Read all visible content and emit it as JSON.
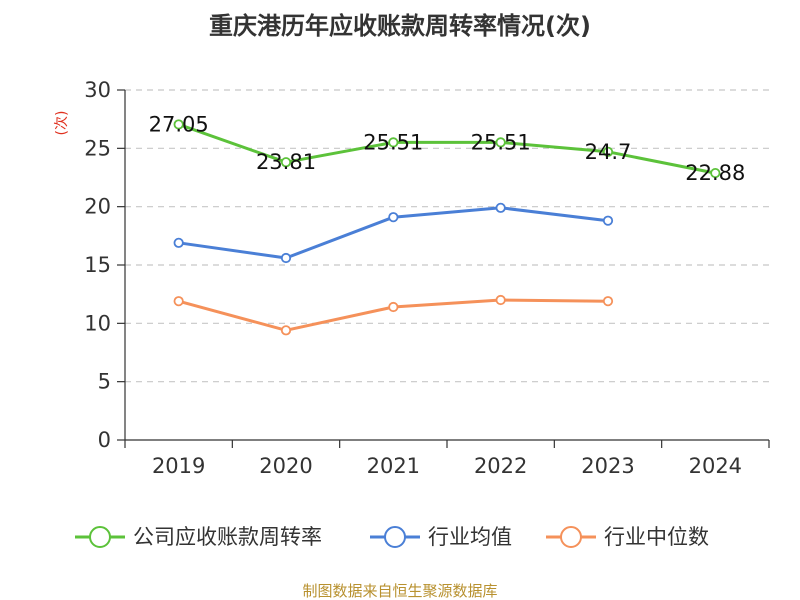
{
  "chart_data": {
    "type": "line",
    "title": "重庆港历年应收账款周转率情况(次)",
    "ylabel": "(次)",
    "xlabel": "",
    "categories": [
      "2019",
      "2020",
      "2021",
      "2022",
      "2023",
      "2024"
    ],
    "ylim": [
      0,
      30
    ],
    "yticks": [
      0,
      5,
      10,
      15,
      20,
      25,
      30
    ],
    "grid": true,
    "legend_position": "bottom",
    "series": [
      {
        "name": "公司应收账款周转率",
        "color": "#5cc23a",
        "values": [
          27.05,
          23.81,
          25.51,
          25.51,
          24.7,
          22.88
        ],
        "labels": [
          "27.05",
          "23.81",
          "25.51",
          "25.51",
          "24.7",
          "22.88"
        ]
      },
      {
        "name": "行业均值",
        "color": "#4a7fd6",
        "values": [
          16.9,
          15.6,
          19.1,
          19.9,
          18.8,
          null
        ]
      },
      {
        "name": "行业中位数",
        "color": "#f5915a",
        "values": [
          11.9,
          9.4,
          11.4,
          12.0,
          11.9,
          null
        ]
      }
    ]
  },
  "footer": {
    "source": "制图数据来自恒生聚源数据库"
  }
}
